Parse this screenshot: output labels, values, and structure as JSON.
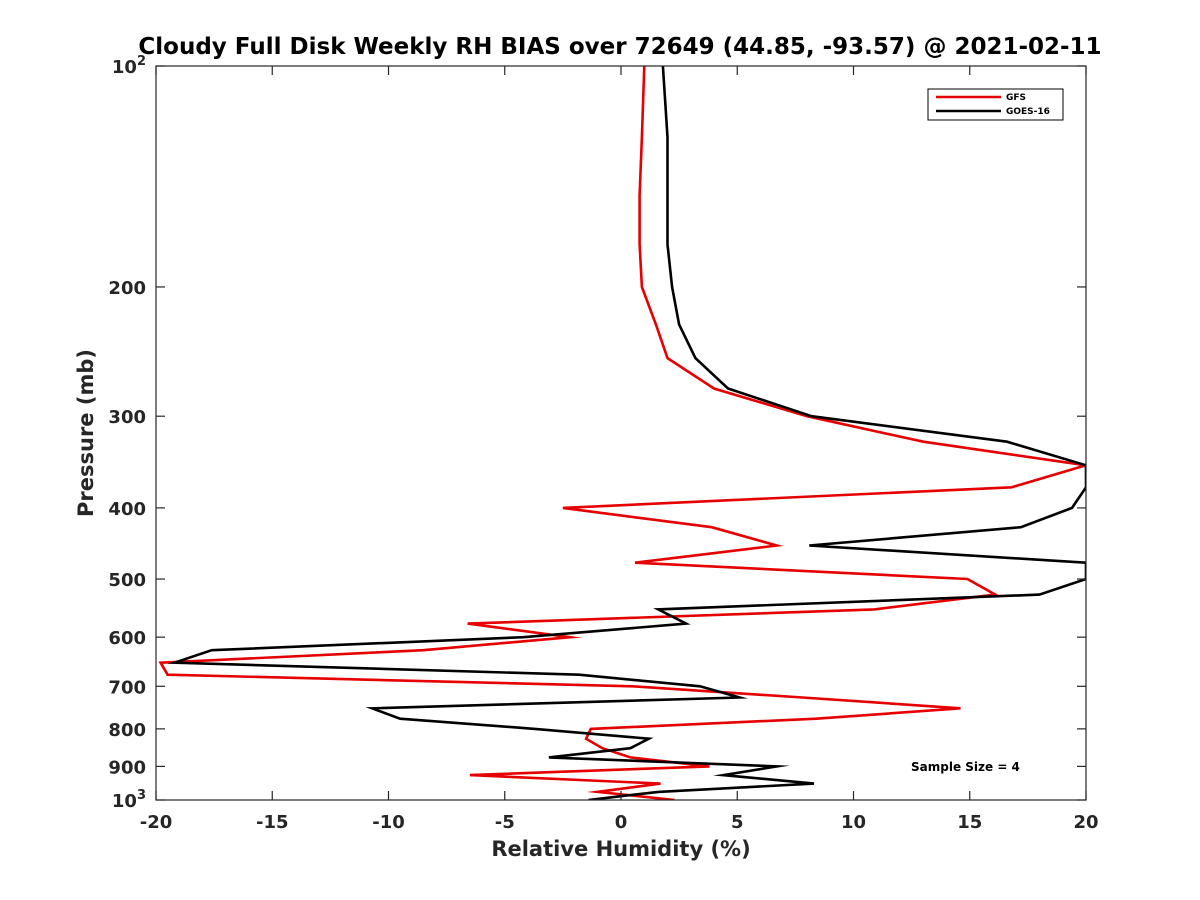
{
  "chart_data": {
    "type": "line",
    "title": "Cloudy Full Disk Weekly RH BIAS over 72649 (44.85, -93.57) @ 2021-02-11",
    "xlabel": "Relative Humidity (%)",
    "ylabel": "Pressure (mb)",
    "xlim": [
      -20,
      20
    ],
    "ylim": [
      100,
      1000
    ],
    "y_scale": "log",
    "y_reversed": true,
    "grid": false,
    "legend_position": "top-right",
    "xticks": [
      -20,
      -15,
      -10,
      -5,
      0,
      5,
      10,
      15,
      20
    ],
    "xtick_labels": [
      "-20",
      "-15",
      "-10",
      "-5",
      "0",
      "5",
      "10",
      "15",
      "20"
    ],
    "yticks": [
      {
        "value": 100,
        "base": "10",
        "exp": "2"
      },
      {
        "value": 200,
        "label": "200"
      },
      {
        "value": 300,
        "label": "300"
      },
      {
        "value": 400,
        "label": "400"
      },
      {
        "value": 500,
        "label": "500"
      },
      {
        "value": 600,
        "label": "600"
      },
      {
        "value": 700,
        "label": "700"
      },
      {
        "value": 800,
        "label": "800"
      },
      {
        "value": 900,
        "label": "900"
      },
      {
        "value": 1000,
        "base": "10",
        "exp": "3"
      }
    ],
    "annotation": "Sample Size = 4",
    "series": [
      {
        "name": "GFS",
        "color": "#e60000",
        "points": [
          [
            1.0,
            100
          ],
          [
            0.9,
            125
          ],
          [
            0.8,
            150
          ],
          [
            0.8,
            175
          ],
          [
            0.9,
            200
          ],
          [
            1.5,
            225
          ],
          [
            2.0,
            250
          ],
          [
            4.0,
            275
          ],
          [
            8.0,
            300
          ],
          [
            13.0,
            325
          ],
          [
            20.0,
            350
          ],
          [
            16.8,
            375
          ],
          [
            -2.5,
            400
          ],
          [
            3.9,
            425
          ],
          [
            6.7,
            450
          ],
          [
            0.6,
            475
          ],
          [
            14.9,
            500
          ],
          [
            16.1,
            525
          ],
          [
            10.9,
            550
          ],
          [
            -6.6,
            575
          ],
          [
            -2.2,
            600
          ],
          [
            -8.5,
            625
          ],
          [
            -19.8,
            650
          ],
          [
            -19.5,
            675
          ],
          [
            0.5,
            700
          ],
          [
            7.8,
            725
          ],
          [
            14.6,
            750
          ],
          [
            8.4,
            775
          ],
          [
            -1.3,
            800
          ],
          [
            -1.5,
            825
          ],
          [
            -0.8,
            850
          ],
          [
            0.4,
            875
          ],
          [
            3.8,
            900
          ],
          [
            -6.5,
            925
          ],
          [
            1.7,
            950
          ],
          [
            -1.0,
            975
          ],
          [
            2.3,
            1000
          ]
        ]
      },
      {
        "name": "GOES-16",
        "color": "#000000",
        "points": [
          [
            1.8,
            100
          ],
          [
            2.0,
            125
          ],
          [
            2.0,
            150
          ],
          [
            2.0,
            175
          ],
          [
            2.2,
            200
          ],
          [
            2.5,
            225
          ],
          [
            3.2,
            250
          ],
          [
            4.6,
            275
          ],
          [
            8.2,
            300
          ],
          [
            16.6,
            325
          ],
          [
            20.0,
            350
          ],
          [
            20.0,
            375
          ],
          [
            19.4,
            400
          ],
          [
            17.2,
            425
          ],
          [
            8.1,
            450
          ],
          [
            20.0,
            475
          ],
          [
            20.0,
            500
          ],
          [
            18.0,
            525
          ],
          [
            1.6,
            550
          ],
          [
            2.8,
            575
          ],
          [
            -4.2,
            600
          ],
          [
            -17.6,
            625
          ],
          [
            -19.2,
            650
          ],
          [
            -1.8,
            675
          ],
          [
            3.4,
            700
          ],
          [
            5.1,
            725
          ],
          [
            -10.7,
            750
          ],
          [
            -9.5,
            775
          ],
          [
            -3.7,
            800
          ],
          [
            1.2,
            825
          ],
          [
            0.4,
            850
          ],
          [
            -3.1,
            875
          ],
          [
            6.7,
            900
          ],
          [
            4.4,
            925
          ],
          [
            8.3,
            950
          ],
          [
            1.6,
            975
          ],
          [
            -1.4,
            1000
          ]
        ]
      }
    ]
  }
}
